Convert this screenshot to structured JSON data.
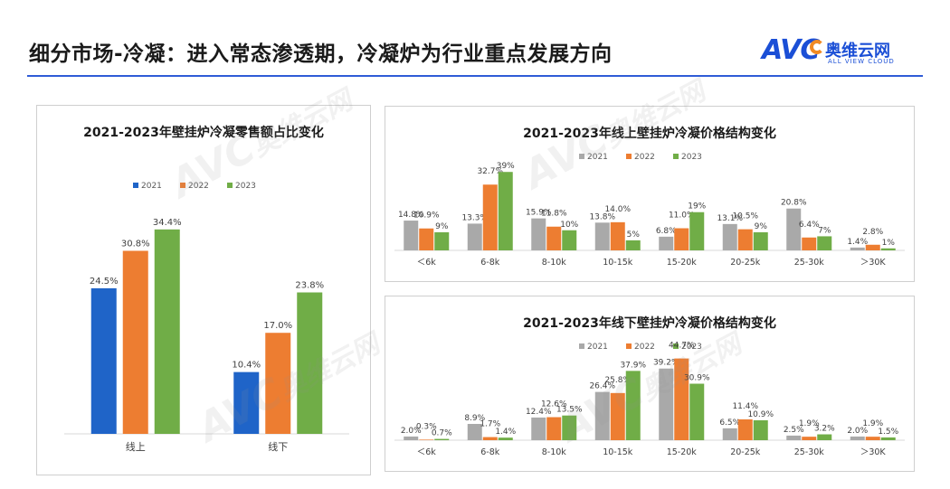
{
  "page": {
    "title": "细分市场-冷凝：进入常态渗透期，冷凝炉为行业重点发展方向",
    "logo": {
      "main": "AVC",
      "cn": "奥维云网",
      "en": "ALL VIEW CLOUD"
    },
    "watermark": {
      "main": "AVC",
      "cn": "奥维云网",
      "en": "ALL VIEW CLOUD"
    }
  },
  "colors": {
    "2021": "#1f64c8",
    "2021_gray": "#a9a9a9",
    "2022": "#ed7d31",
    "2023": "#70ad47",
    "accent": "#2f5cd6"
  },
  "chart_data": [
    {
      "type": "bar",
      "title": "2021-2023年壁挂炉冷凝零售额占比变化",
      "categories": [
        "线上",
        "线下"
      ],
      "series": [
        {
          "name": "2021",
          "values": [
            24.5,
            10.4
          ],
          "labels": [
            "24.5%",
            "10.4%"
          ]
        },
        {
          "name": "2022",
          "values": [
            30.8,
            17.0
          ],
          "labels": [
            "30.8%",
            "17.0%"
          ]
        },
        {
          "name": "2023",
          "values": [
            34.4,
            23.8
          ],
          "labels": [
            "34.4%",
            "23.8%"
          ]
        }
      ],
      "ylim": [
        0,
        40
      ],
      "legend": "top",
      "grid": false
    },
    {
      "type": "bar",
      "title": "2021-2023年线上壁挂炉冷凝价格结构变化",
      "categories": [
        "＜6k",
        "6-8k",
        "8-10k",
        "10-15k",
        "15-20k",
        "20-25k",
        "25-30k",
        "＞30K"
      ],
      "series": [
        {
          "name": "2021",
          "values": [
            14.8,
            13.3,
            15.9,
            13.8,
            6.8,
            13.1,
            20.8,
            1.4
          ],
          "labels": [
            "14.8%",
            "13.3%",
            "15.9%",
            "13.8%",
            "6.8%",
            "13.1%",
            "20.8%",
            "1.4%"
          ]
        },
        {
          "name": "2022",
          "values": [
            10.9,
            32.7,
            11.8,
            14.0,
            11.0,
            10.5,
            6.4,
            2.8
          ],
          "labels": [
            "10.9%",
            "32.7%",
            "11.8%",
            "14.0%",
            "11.0%",
            "10.5%",
            "6.4%",
            "2.8%"
          ]
        },
        {
          "name": "2023",
          "values": [
            9,
            39,
            10,
            5,
            19,
            9,
            7,
            1
          ],
          "labels": [
            "9%",
            "39%",
            "10%",
            "5%",
            "19%",
            "9%",
            "7%",
            "1%"
          ]
        }
      ],
      "ylim": [
        0,
        40
      ],
      "legend": "top",
      "grid": false
    },
    {
      "type": "bar",
      "title": "2021-2023年线下壁挂炉冷凝价格结构变化",
      "categories": [
        "＜6k",
        "6-8k",
        "8-10k",
        "10-15k",
        "15-20k",
        "20-25k",
        "25-30k",
        "＞30K"
      ],
      "series": [
        {
          "name": "2021",
          "values": [
            2.0,
            8.9,
            12.4,
            26.4,
            39.2,
            6.5,
            2.5,
            2.0
          ],
          "labels": [
            "2.0%",
            "8.9%",
            "12.4%",
            "26.4%",
            "39.2%",
            "6.5%",
            "2.5%",
            "2.0%"
          ]
        },
        {
          "name": "2022",
          "values": [
            0.3,
            1.7,
            12.6,
            25.8,
            44.7,
            11.4,
            1.9,
            1.9
          ],
          "labels": [
            "0.3%",
            "1.7%",
            "12.6%",
            "25.8%",
            "44.7%",
            "11.4%",
            "1.9%",
            "1.9%"
          ]
        },
        {
          "name": "2023",
          "values": [
            0.7,
            1.4,
            13.5,
            37.9,
            30.9,
            10.9,
            3.2,
            1.5
          ],
          "labels": [
            "0.7%",
            "1.4%",
            "13.5%",
            "37.9%",
            "30.9%",
            "10.9%",
            "3.2%",
            "1.5%"
          ]
        }
      ],
      "ylim": [
        0,
        45
      ],
      "legend": "top",
      "grid": false
    }
  ]
}
